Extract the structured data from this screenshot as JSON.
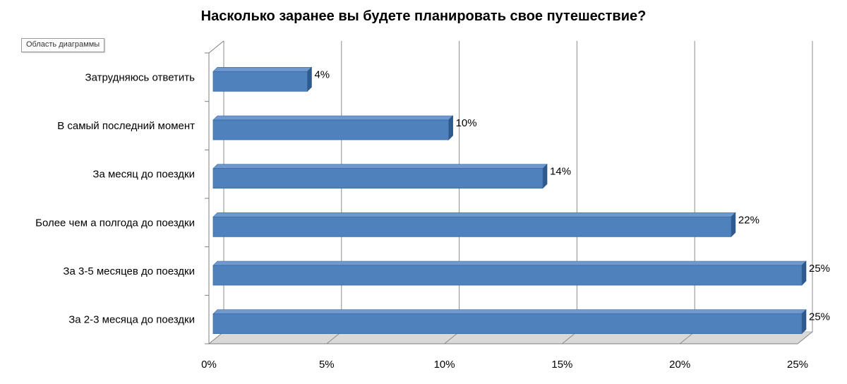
{
  "chart_data": {
    "type": "bar",
    "orientation": "horizontal",
    "style": "3d",
    "title": "Насколько заранее вы будете планировать свое путешествие?",
    "area_badge": "Область диаграммы",
    "categories": [
      "Затрудняюсь ответить",
      "В самый последний момент",
      "За месяц до поездки",
      "Более чем а полгода до поездки",
      "За 3-5 месяцев до поездки",
      "За 2-3 месяца до поездки"
    ],
    "values": [
      4,
      10,
      14,
      22,
      25,
      25
    ],
    "data_labels": [
      "4%",
      "10%",
      "14%",
      "22%",
      "25%",
      "25%"
    ],
    "xlim": [
      0,
      25
    ],
    "x_ticks": [
      0,
      5,
      10,
      15,
      20,
      25
    ],
    "x_tick_labels": [
      "0%",
      "5%",
      "10%",
      "15%",
      "20%",
      "25%"
    ],
    "grid": true,
    "colors": {
      "bar_front": "#4f81bd",
      "bar_top": "#6f98cf",
      "bar_side": "#2f5a8e",
      "grid": "#8c8c8c",
      "floor": "#d9d9d9"
    }
  }
}
